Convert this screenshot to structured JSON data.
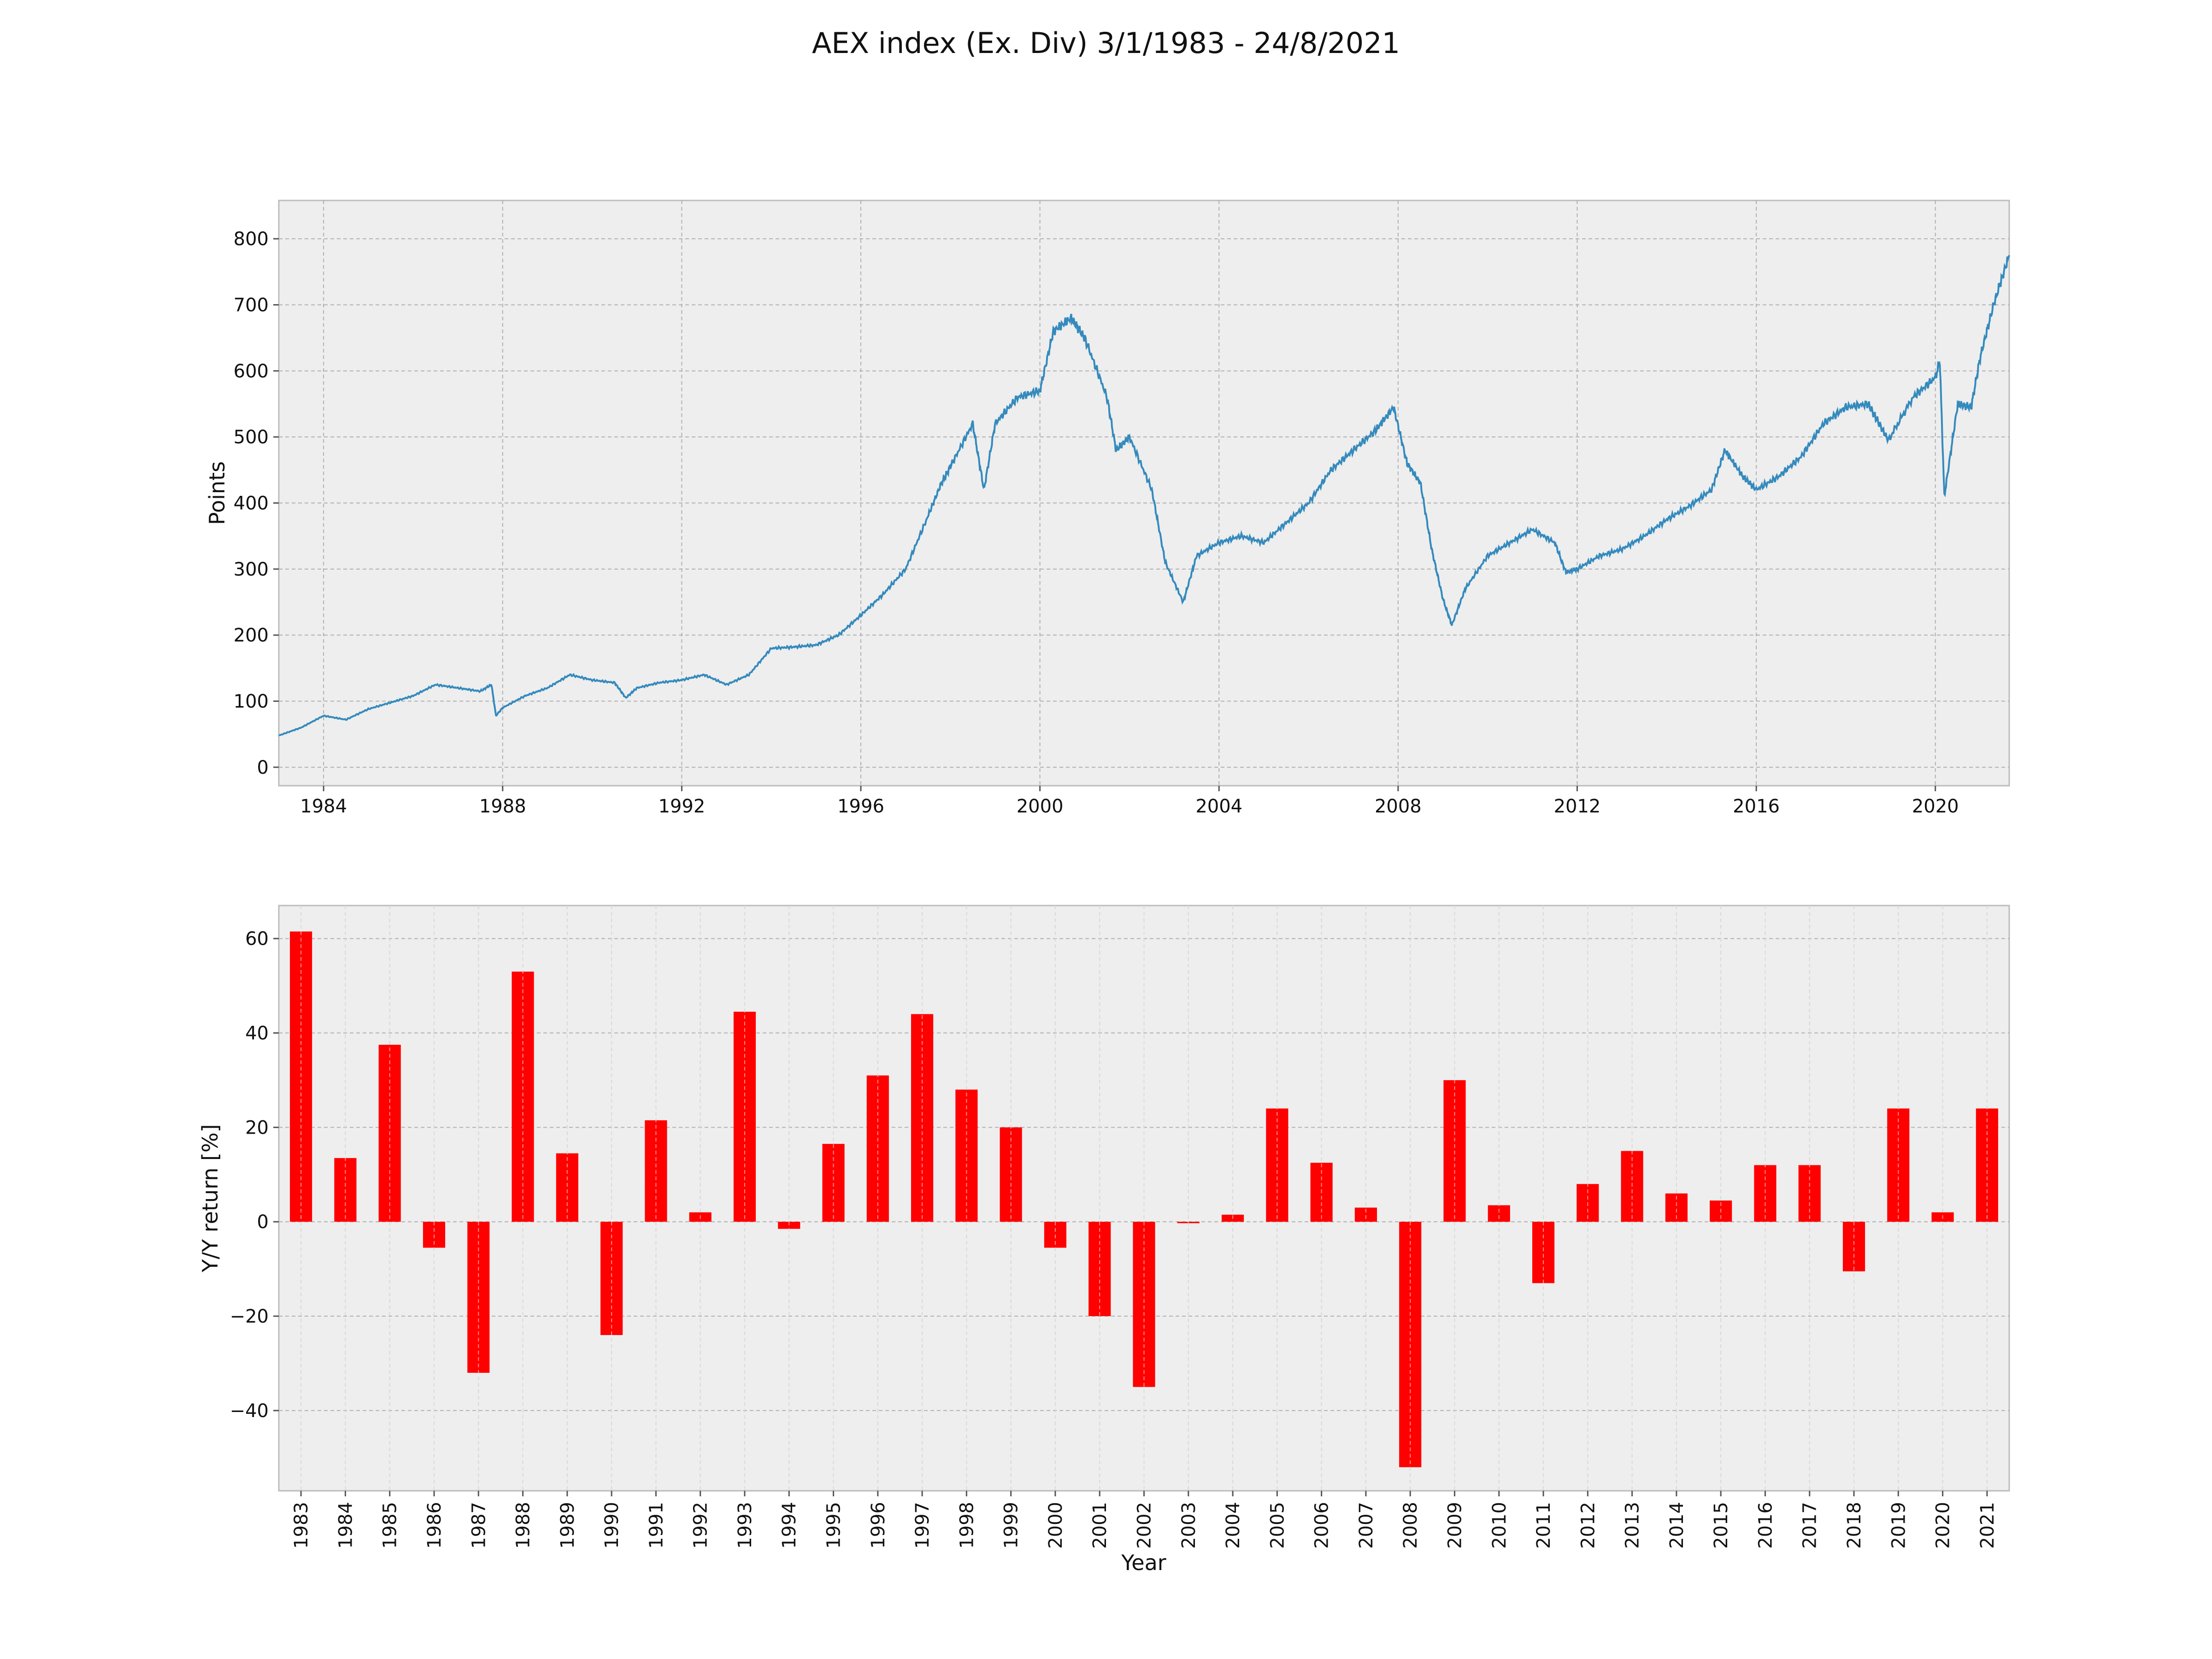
{
  "figure": {
    "title": "AEX index (Ex. Div) 3/1/1983 - 24/8/2021"
  },
  "chart_data": [
    {
      "type": "line",
      "title": "",
      "xlabel": "",
      "ylabel": "Points",
      "xlim": [
        1983.0,
        2021.65
      ],
      "ylim": [
        -28,
        858
      ],
      "x_ticks": [
        1984,
        1988,
        1992,
        1996,
        2000,
        2004,
        2008,
        2012,
        2016,
        2020
      ],
      "x_tick_labels": [
        "1984",
        "1988",
        "1992",
        "1996",
        "2000",
        "2004",
        "2008",
        "2012",
        "2016",
        "2020"
      ],
      "y_ticks": [
        0,
        100,
        200,
        300,
        400,
        500,
        600,
        700,
        800
      ],
      "y_tick_labels": [
        "0",
        "100",
        "200",
        "300",
        "400",
        "500",
        "600",
        "700",
        "800"
      ],
      "grid": true,
      "color": "#348abd",
      "series": [
        {
          "x": [
            1983.0,
            1983.5,
            1984.0,
            1984.5,
            1985.0,
            1985.5,
            1986.0,
            1986.5,
            1987.0,
            1987.5,
            1987.75,
            1987.85,
            1988.0,
            1988.5,
            1989.0,
            1989.5,
            1990.0,
            1990.5,
            1990.75,
            1991.0,
            1991.5,
            1992.0,
            1992.5,
            1993.0,
            1993.5,
            1994.0,
            1994.5,
            1995.0,
            1995.5,
            1996.0,
            1996.5,
            1997.0,
            1997.5,
            1997.8,
            1998.0,
            1998.5,
            1998.75,
            1999.0,
            1999.5,
            2000.0,
            2000.3,
            2000.7,
            2001.0,
            2001.5,
            2001.7,
            2002.0,
            2002.5,
            2002.8,
            2003.2,
            2003.5,
            2004.0,
            2004.5,
            2005.0,
            2005.5,
            2006.0,
            2006.5,
            2007.0,
            2007.5,
            2007.9,
            2008.2,
            2008.5,
            2008.75,
            2009.0,
            2009.2,
            2009.5,
            2010.0,
            2010.5,
            2011.0,
            2011.5,
            2011.75,
            2012.0,
            2012.5,
            2013.0,
            2013.5,
            2014.0,
            2014.5,
            2015.0,
            2015.3,
            2015.7,
            2016.0,
            2016.5,
            2017.0,
            2017.5,
            2018.0,
            2018.5,
            2018.95,
            2019.5,
            2020.0,
            2020.1,
            2020.2,
            2020.5,
            2020.8,
            2021.0,
            2021.3,
            2021.65
          ],
          "y": [
            48,
            60,
            78,
            72,
            88,
            98,
            108,
            125,
            120,
            115,
            125,
            78,
            90,
            108,
            120,
            140,
            132,
            128,
            105,
            120,
            128,
            132,
            140,
            125,
            140,
            180,
            182,
            185,
            200,
            230,
            262,
            300,
            380,
            430,
            455,
            520,
            420,
            520,
            560,
            570,
            660,
            680,
            650,
            560,
            480,
            500,
            420,
            310,
            250,
            320,
            340,
            350,
            340,
            370,
            400,
            450,
            480,
            510,
            545,
            460,
            430,
            330,
            255,
            215,
            270,
            320,
            340,
            360,
            340,
            295,
            300,
            320,
            330,
            350,
            375,
            395,
            420,
            480,
            440,
            420,
            440,
            470,
            520,
            545,
            550,
            495,
            560,
            590,
            615,
            410,
            550,
            545,
            620,
            700,
            775
          ]
        }
      ]
    },
    {
      "type": "bar",
      "title": "",
      "xlabel": "Year",
      "ylabel": "Y/Y return [%]",
      "ylim": [
        -57,
        67
      ],
      "y_ticks": [
        -40,
        -20,
        0,
        20,
        40,
        60
      ],
      "y_tick_labels": [
        "−40",
        "−20",
        "0",
        "20",
        "40",
        "60"
      ],
      "grid": true,
      "color": "#ff0000",
      "categories": [
        "1983",
        "1984",
        "1985",
        "1986",
        "1987",
        "1988",
        "1989",
        "1990",
        "1991",
        "1992",
        "1993",
        "1994",
        "1995",
        "1996",
        "1997",
        "1998",
        "1999",
        "2000",
        "2001",
        "2002",
        "2003",
        "2004",
        "2005",
        "2006",
        "2007",
        "2008",
        "2009",
        "2010",
        "2011",
        "2012",
        "2013",
        "2014",
        "2015",
        "2016",
        "2017",
        "2018",
        "2019",
        "2020",
        "2021"
      ],
      "values": [
        61.5,
        13.5,
        37.5,
        -5.5,
        -32,
        53,
        14.5,
        -24,
        21.5,
        2,
        44.5,
        -1.5,
        16.5,
        31,
        44,
        28,
        20,
        -5.5,
        -20,
        -35,
        -0.3,
        1.5,
        24,
        12.5,
        3,
        -52,
        30,
        3.5,
        -13,
        8,
        15,
        6,
        4.5,
        12,
        12,
        -10.5,
        24,
        2,
        24
      ]
    }
  ]
}
